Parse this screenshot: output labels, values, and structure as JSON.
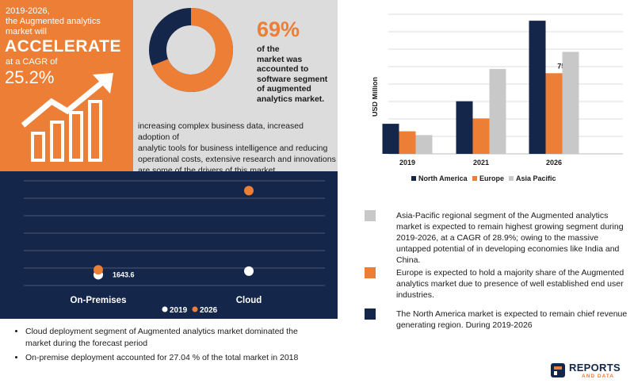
{
  "hero": {
    "line1": "2019-2026,",
    "line2": "the Augmented analytics",
    "line3": "market will",
    "headline": "ACCELERATE",
    "line4": "at a CAGR of",
    "cagr": "25.2%"
  },
  "share": {
    "percent": "69%",
    "caption_lines": [
      "of the",
      "market was",
      "accounted to",
      "software segment",
      "of augmented",
      "analytics market."
    ],
    "donut_fraction": 0.69
  },
  "drivers": {
    "lines": [
      "increasing complex business data, increased adoption of",
      "analytic tools for business intelligence and reducing",
      "operational costs,  extensive research and innovations",
      "are some of the drivers of this market."
    ]
  },
  "deployment": {
    "data_label": "1643.6",
    "legend": [
      "2019",
      "2026"
    ],
    "bullets": [
      "Cloud deployment  segment of Augmented analytics market dominated the market during the forecast period",
      "On-premise deployment accounted for 27.04 % of the total market in 2018"
    ]
  },
  "regions": {
    "notes": [
      {
        "color": "#c8c8c8",
        "text": "Asia-Pacific regional segment of the Augmented analytics market is expected to remain highest growing segment during 2019-2026, at a CAGR of 28.9%; owing to the massive untapped potential of in developing economies like India and China."
      },
      {
        "color": "#ec7e35",
        "text": "Europe is  expected to hold a majority share of the Augmented analytics market due to presence of well established end user industries."
      },
      {
        "color": "#14264a",
        "text": "The North America market  is expected to remain chief revenue generating region. During 2019-2026"
      }
    ]
  },
  "logo": {
    "text1": "REPORTS",
    "text2": "AND DATA"
  },
  "chart_data": [
    {
      "type": "bar",
      "categories": [
        "2019",
        "2021",
        "2026"
      ],
      "ylabel": "USD Million",
      "data_label": "7509.5",
      "series": [
        {
          "name": "North America",
          "color": "#14264a",
          "values": [
            2800,
            4900,
            12400
          ]
        },
        {
          "name": "Europe",
          "color": "#ec7e35",
          "values": [
            2100,
            3300,
            7509.5
          ]
        },
        {
          "name": "Asia Pacific",
          "color": "#c8c8c8",
          "values": [
            1750,
            7900,
            9500
          ]
        }
      ],
      "ylim": [
        0,
        13000
      ],
      "grid": true,
      "legend": "bottom"
    },
    {
      "type": "scatter",
      "categories": [
        "On-Premises",
        "Cloud"
      ],
      "series": [
        {
          "name": "2019",
          "color": "#ffffff",
          "values": [
            1643.6,
            2200
          ]
        },
        {
          "name": "2026",
          "color": "#ec7e35",
          "values": [
            2400,
            14500
          ]
        }
      ],
      "ylim": [
        0,
        16000
      ],
      "grid": true,
      "legend": "bottom"
    }
  ]
}
